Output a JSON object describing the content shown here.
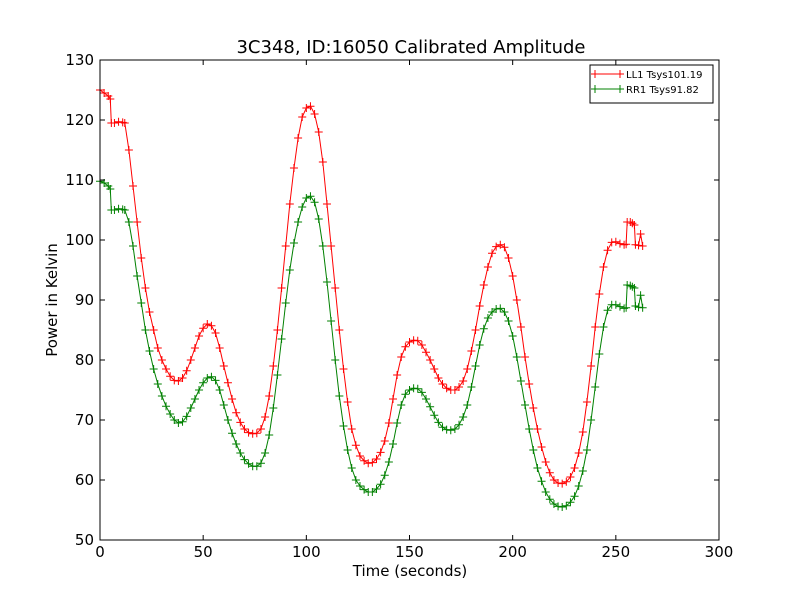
{
  "chart_data": {
    "type": "line",
    "title": "3C348, ID:16050 Calibrated Amplitude",
    "xlabel": "Time (seconds)",
    "ylabel": "Power in Kelvin",
    "xlim": [
      0,
      300
    ],
    "ylim": [
      50,
      130
    ],
    "xticks": [
      "0",
      "50",
      "100",
      "150",
      "200",
      "250",
      "300"
    ],
    "yticks": [
      "50",
      "60",
      "70",
      "80",
      "90",
      "100",
      "110",
      "120",
      "130"
    ],
    "grid": false,
    "legend_position": "top-right",
    "marker": "+",
    "series": [
      {
        "name": "LL1 Tsys101.19",
        "color": "#ff0000",
        "points": [
          [
            0,
            125
          ],
          [
            2,
            124.5
          ],
          [
            4,
            124
          ],
          [
            5,
            123.5
          ],
          [
            5.5,
            119.5
          ],
          [
            7,
            119.5
          ],
          [
            9,
            119.7
          ],
          [
            11,
            119.6
          ],
          [
            12,
            119.5
          ],
          [
            14,
            115
          ],
          [
            16,
            109
          ],
          [
            18,
            103
          ],
          [
            20,
            97
          ],
          [
            22,
            92
          ],
          [
            24,
            88
          ],
          [
            26,
            85
          ],
          [
            28,
            82
          ],
          [
            30,
            80
          ],
          [
            32,
            78.5
          ],
          [
            34,
            77.3
          ],
          [
            36,
            76.6
          ],
          [
            38,
            76.5
          ],
          [
            40,
            77
          ],
          [
            42,
            78.2
          ],
          [
            44,
            80
          ],
          [
            46,
            82
          ],
          [
            48,
            84
          ],
          [
            50,
            85.3
          ],
          [
            52,
            86
          ],
          [
            54,
            85.7
          ],
          [
            56,
            84.5
          ],
          [
            58,
            82
          ],
          [
            60,
            79
          ],
          [
            62,
            76.2
          ],
          [
            64,
            73.5
          ],
          [
            66,
            71.2
          ],
          [
            68,
            69.6
          ],
          [
            70,
            68.5
          ],
          [
            72,
            67.9
          ],
          [
            74,
            67.7
          ],
          [
            76,
            67.8
          ],
          [
            78,
            68.5
          ],
          [
            80,
            70.5
          ],
          [
            82,
            74
          ],
          [
            84,
            79
          ],
          [
            86,
            85
          ],
          [
            88,
            92
          ],
          [
            90,
            99
          ],
          [
            92,
            106
          ],
          [
            94,
            112
          ],
          [
            96,
            117
          ],
          [
            98,
            120.5
          ],
          [
            100,
            122
          ],
          [
            102,
            122.3
          ],
          [
            104,
            121
          ],
          [
            106,
            118
          ],
          [
            108,
            113
          ],
          [
            110,
            106
          ],
          [
            112,
            99
          ],
          [
            114,
            92
          ],
          [
            116,
            85
          ],
          [
            118,
            78.5
          ],
          [
            120,
            73
          ],
          [
            122,
            68.5
          ],
          [
            124,
            65.8
          ],
          [
            126,
            64
          ],
          [
            128,
            63.2
          ],
          [
            130,
            62.8
          ],
          [
            132,
            62.9
          ],
          [
            134,
            63.5
          ],
          [
            136,
            64.6
          ],
          [
            138,
            66.5
          ],
          [
            140,
            69.5
          ],
          [
            142,
            73.5
          ],
          [
            144,
            77.5
          ],
          [
            146,
            80.5
          ],
          [
            148,
            82.2
          ],
          [
            150,
            83
          ],
          [
            152,
            83.3
          ],
          [
            154,
            83.2
          ],
          [
            156,
            82.5
          ],
          [
            158,
            81.3
          ],
          [
            160,
            80
          ],
          [
            162,
            78.5
          ],
          [
            164,
            77
          ],
          [
            166,
            76
          ],
          [
            168,
            75.3
          ],
          [
            170,
            75
          ],
          [
            172,
            75
          ],
          [
            174,
            75.5
          ],
          [
            176,
            76.5
          ],
          [
            178,
            78.5
          ],
          [
            180,
            81.5
          ],
          [
            182,
            85
          ],
          [
            184,
            89
          ],
          [
            186,
            92.5
          ],
          [
            188,
            95.5
          ],
          [
            190,
            97.8
          ],
          [
            192,
            98.9
          ],
          [
            194,
            99.2
          ],
          [
            196,
            98.8
          ],
          [
            198,
            97
          ],
          [
            200,
            94
          ],
          [
            202,
            90
          ],
          [
            204,
            85.5
          ],
          [
            206,
            80.5
          ],
          [
            208,
            76
          ],
          [
            210,
            72
          ],
          [
            212,
            68.5
          ],
          [
            214,
            65.5
          ],
          [
            216,
            63
          ],
          [
            218,
            61.2
          ],
          [
            220,
            60
          ],
          [
            222,
            59.5
          ],
          [
            224,
            59.4
          ],
          [
            226,
            59.7
          ],
          [
            228,
            60.5
          ],
          [
            230,
            62
          ],
          [
            232,
            64.5
          ],
          [
            234,
            68
          ],
          [
            236,
            73
          ],
          [
            238,
            79
          ],
          [
            240,
            85.5
          ],
          [
            242,
            91
          ],
          [
            244,
            95.5
          ],
          [
            246,
            98.3
          ],
          [
            248,
            99.6
          ],
          [
            250,
            99.7
          ],
          [
            252,
            99.4
          ],
          [
            254,
            99.2
          ],
          [
            255,
            99.3
          ],
          [
            255.5,
            103
          ],
          [
            257,
            103
          ],
          [
            258,
            102.8
          ],
          [
            259,
            102.5
          ],
          [
            259.5,
            99.2
          ],
          [
            261,
            99.1
          ],
          [
            262,
            101
          ],
          [
            263,
            99
          ]
        ]
      },
      {
        "name": "RR1 Tsys91.82",
        "color": "#008000",
        "points": [
          [
            0,
            109.8
          ],
          [
            2,
            109.5
          ],
          [
            4,
            109
          ],
          [
            5,
            108.5
          ],
          [
            5.5,
            105
          ],
          [
            7,
            105
          ],
          [
            9,
            105.2
          ],
          [
            11,
            105.1
          ],
          [
            12,
            105
          ],
          [
            14,
            103
          ],
          [
            16,
            99
          ],
          [
            18,
            94
          ],
          [
            20,
            89.5
          ],
          [
            22,
            85
          ],
          [
            24,
            81.5
          ],
          [
            26,
            78.5
          ],
          [
            28,
            76
          ],
          [
            30,
            74
          ],
          [
            32,
            72.3
          ],
          [
            34,
            71
          ],
          [
            36,
            70
          ],
          [
            38,
            69.5
          ],
          [
            40,
            69.7
          ],
          [
            42,
            70.6
          ],
          [
            44,
            72
          ],
          [
            46,
            73.5
          ],
          [
            48,
            75
          ],
          [
            50,
            76.2
          ],
          [
            52,
            77
          ],
          [
            54,
            77.2
          ],
          [
            56,
            76.6
          ],
          [
            58,
            75
          ],
          [
            60,
            72.5
          ],
          [
            62,
            70
          ],
          [
            64,
            67.8
          ],
          [
            66,
            66
          ],
          [
            68,
            64.5
          ],
          [
            70,
            63.4
          ],
          [
            72,
            62.7
          ],
          [
            74,
            62.3
          ],
          [
            76,
            62.3
          ],
          [
            78,
            62.8
          ],
          [
            80,
            64.5
          ],
          [
            82,
            67.5
          ],
          [
            84,
            72
          ],
          [
            86,
            77.5
          ],
          [
            88,
            83.5
          ],
          [
            90,
            89.5
          ],
          [
            92,
            95
          ],
          [
            94,
            99.5
          ],
          [
            96,
            103
          ],
          [
            98,
            105.5
          ],
          [
            100,
            107
          ],
          [
            102,
            107.3
          ],
          [
            104,
            106.3
          ],
          [
            106,
            103.5
          ],
          [
            108,
            99
          ],
          [
            110,
            93
          ],
          [
            112,
            86.5
          ],
          [
            114,
            80
          ],
          [
            116,
            74
          ],
          [
            118,
            69
          ],
          [
            120,
            65
          ],
          [
            122,
            62
          ],
          [
            124,
            60
          ],
          [
            126,
            59
          ],
          [
            128,
            58.4
          ],
          [
            130,
            58
          ],
          [
            132,
            58
          ],
          [
            134,
            58.5
          ],
          [
            136,
            59.3
          ],
          [
            138,
            60.8
          ],
          [
            140,
            63
          ],
          [
            142,
            66
          ],
          [
            144,
            69.5
          ],
          [
            146,
            72.5
          ],
          [
            148,
            74.3
          ],
          [
            150,
            75
          ],
          [
            152,
            75.3
          ],
          [
            154,
            75.2
          ],
          [
            156,
            74.6
          ],
          [
            158,
            73.5
          ],
          [
            160,
            72.2
          ],
          [
            162,
            70.8
          ],
          [
            164,
            69.6
          ],
          [
            166,
            68.8
          ],
          [
            168,
            68.4
          ],
          [
            170,
            68.3
          ],
          [
            172,
            68.5
          ],
          [
            174,
            69.2
          ],
          [
            176,
            70.5
          ],
          [
            178,
            72.5
          ],
          [
            180,
            75.5
          ],
          [
            182,
            79
          ],
          [
            184,
            82.5
          ],
          [
            186,
            85.2
          ],
          [
            188,
            87
          ],
          [
            190,
            88
          ],
          [
            192,
            88.5
          ],
          [
            194,
            88.6
          ],
          [
            196,
            88
          ],
          [
            198,
            86.5
          ],
          [
            200,
            84
          ],
          [
            202,
            80.5
          ],
          [
            204,
            76.5
          ],
          [
            206,
            72.5
          ],
          [
            208,
            68.5
          ],
          [
            210,
            65
          ],
          [
            212,
            62
          ],
          [
            214,
            59.8
          ],
          [
            216,
            58
          ],
          [
            218,
            56.8
          ],
          [
            220,
            56
          ],
          [
            222,
            55.6
          ],
          [
            224,
            55.5
          ],
          [
            226,
            55.7
          ],
          [
            228,
            56.3
          ],
          [
            230,
            57.3
          ],
          [
            232,
            59
          ],
          [
            234,
            61.5
          ],
          [
            236,
            65
          ],
          [
            238,
            70
          ],
          [
            240,
            75.5
          ],
          [
            242,
            81
          ],
          [
            244,
            85.5
          ],
          [
            246,
            88.3
          ],
          [
            248,
            89.2
          ],
          [
            250,
            89.2
          ],
          [
            252,
            88.9
          ],
          [
            254,
            88.6
          ],
          [
            255,
            88.7
          ],
          [
            255.5,
            92.5
          ],
          [
            257,
            92.4
          ],
          [
            258,
            92.2
          ],
          [
            259,
            92
          ],
          [
            259.5,
            89
          ],
          [
            261,
            88.8
          ],
          [
            262,
            90.8
          ],
          [
            263,
            88.7
          ]
        ]
      }
    ]
  }
}
